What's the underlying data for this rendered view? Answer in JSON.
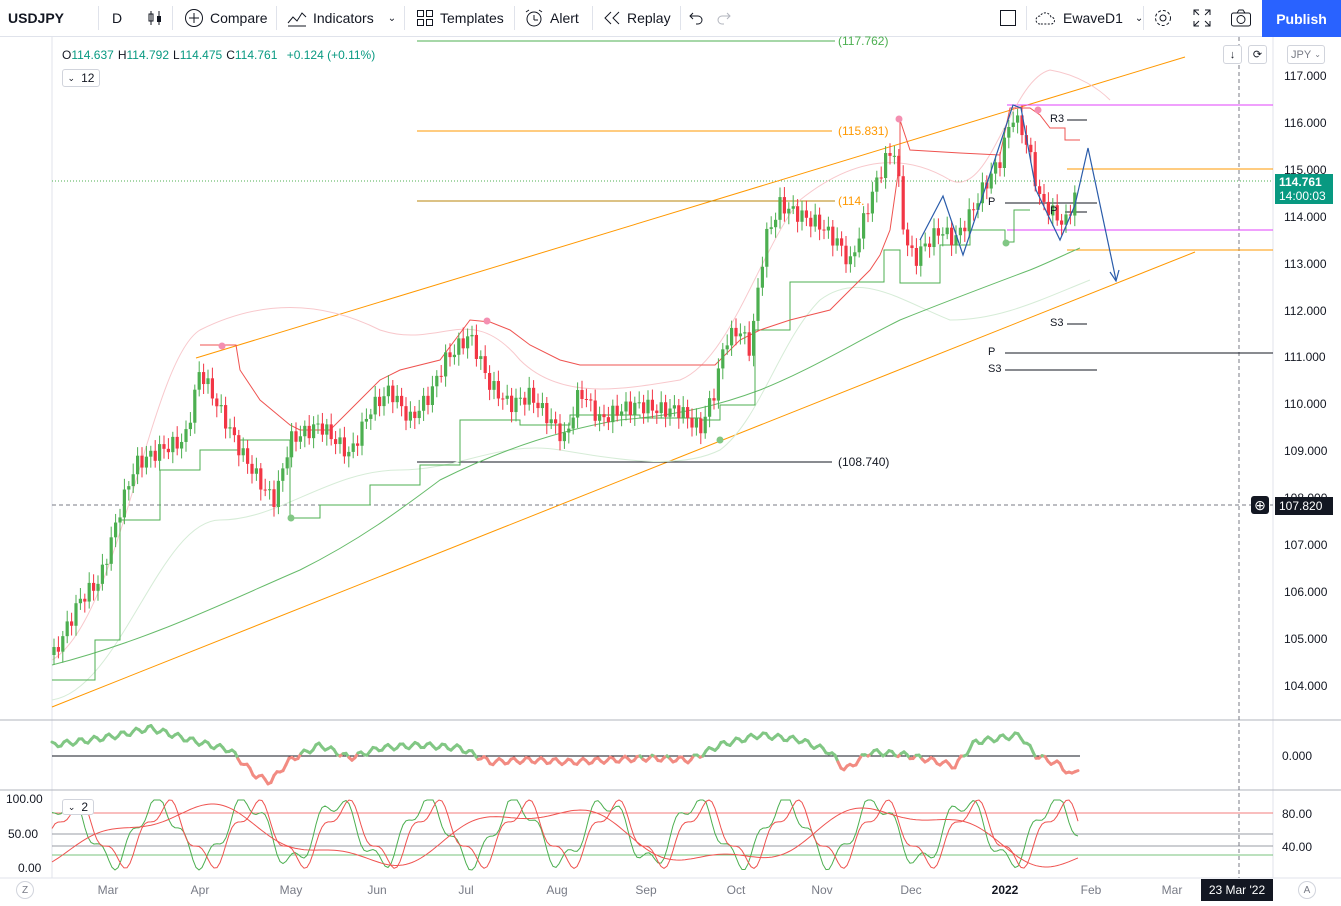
{
  "toolbar": {
    "symbol": "USDJPY",
    "interval": "D",
    "compare": "Compare",
    "indicators": "Indicators",
    "templates": "Templates",
    "alert": "Alert",
    "replay": "Replay",
    "layout_name": "EwaveD1",
    "publish": "Publish"
  },
  "legend": {
    "ohlc": [
      {
        "k": "O",
        "v": "114.637"
      },
      {
        "k": "H",
        "v": "114.792"
      },
      {
        "k": "L",
        "v": "114.475"
      },
      {
        "k": "C",
        "v": "114.761"
      }
    ],
    "change": "+0.124 (+0.11%)",
    "indicator_count": "12",
    "pane3_count": "2"
  },
  "axis": {
    "currency": "JPY",
    "price_ticks": [
      "117.000",
      "116.000",
      "115.000",
      "114.000",
      "113.000",
      "112.000",
      "111.000",
      "110.000",
      "109.000",
      "108.000",
      "107.000",
      "106.000",
      "105.000",
      "104.000"
    ],
    "current_price": "114.761",
    "countdown": "14:00:03",
    "crosshair_price": "107.820",
    "osc_tick": "0.000",
    "stoch_right_ticks": [
      "80.00",
      "40.00"
    ],
    "stoch_left_ticks": [
      "100.00",
      "50.00",
      "0.00"
    ],
    "time_labels": [
      "Mar",
      "Apr",
      "May",
      "Jun",
      "Jul",
      "Aug",
      "Sep",
      "Oct",
      "Nov",
      "Dec",
      "2022",
      "Feb",
      "Mar"
    ],
    "crosshair_date": "23 Mar '22",
    "left_btn": "Z",
    "right_btn": "A"
  },
  "annotations": {
    "levels": [
      "(117.762)",
      "(115.831)",
      "(114.",
      "(108.740)"
    ],
    "pivots": [
      "R3",
      "P",
      "P",
      "S3",
      "P",
      "S3"
    ]
  },
  "colors": {
    "up": "#4caf50",
    "down": "#f23645",
    "accent": "#2962ff",
    "channel": "#ff9800",
    "text": "#131722"
  }
}
